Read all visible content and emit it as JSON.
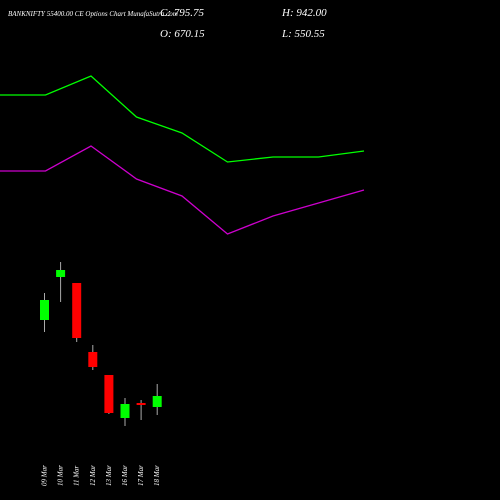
{
  "chart_data": [
    {
      "type": "candlestick",
      "title": "BANKNIFTY 55400.00 CE Options Chart MunafaSutra.com",
      "header": {
        "close": "C: 795.75",
        "high": "H: 942.00",
        "open": "O: 670.15",
        "low": "L: 550.55"
      },
      "categories": [
        "09 Mar",
        "10 Mar",
        "11 Mar",
        "12 Mar",
        "13 Mar",
        "16 Mar",
        "17 Mar",
        "18 Mar"
      ],
      "open": [
        360,
        446,
        434,
        296,
        250,
        164,
        194,
        186
      ],
      "high": [
        414,
        476,
        434,
        310,
        250,
        204,
        200,
        232
      ],
      "low": [
        336,
        396,
        316,
        260,
        172,
        148,
        160,
        170
      ],
      "close": [
        400,
        460,
        324,
        266,
        174,
        192,
        190,
        208
      ],
      "up_color": "#00ff00",
      "down_color": "#ff0000",
      "wick_color": "#aaaaaa",
      "ylim": [
        0,
        1000
      ]
    },
    {
      "type": "line",
      "categories": [
        null,
        null,
        null,
        null,
        null,
        null,
        null,
        null,
        null
      ],
      "series": [
        {
          "color": "#00ff00",
          "values": [
            810,
            810,
            848,
            766,
            734,
            676,
            686,
            686,
            698
          ]
        },
        {
          "color": "#cc00cc",
          "values": [
            658,
            658,
            708,
            642,
            608,
            532,
            568,
            594,
            620
          ]
        }
      ],
      "ylim": [
        0,
        1000
      ]
    }
  ]
}
